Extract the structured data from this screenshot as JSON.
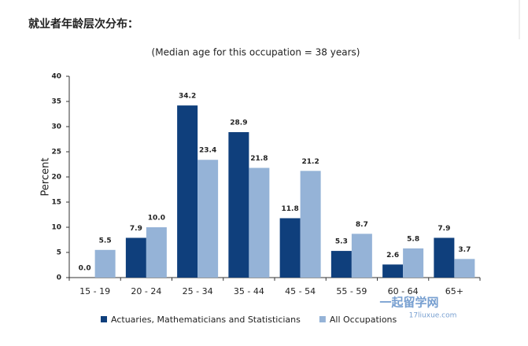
{
  "heading": "就业者年龄层次分布：",
  "watermark": {
    "name": "一起留学网",
    "url": "17liuxue.com"
  },
  "chart_data": {
    "type": "bar",
    "subtitle": "(Median age for this occupation = 38 years)",
    "y_label": "Percent",
    "categories": [
      "15 - 19",
      "20 - 24",
      "25 - 34",
      "35 - 44",
      "45 - 54",
      "55 - 59",
      "60 - 64",
      "65+"
    ],
    "series": [
      {
        "name": "Actuaries, Mathematicians and Statisticians",
        "color": "#0f3f7c",
        "values": [
          0,
          7.9,
          34.2,
          28.9,
          11.8,
          5.3,
          2.6,
          7.9
        ],
        "value_labels": [
          "0.0",
          "7.9",
          "34.2",
          "28.9",
          "11.8",
          "5.3",
          "2.6",
          "7.9"
        ]
      },
      {
        "name": "All Occupations",
        "color": "#95b3d7",
        "values": [
          5.5,
          10,
          23.4,
          21.8,
          21.2,
          8.7,
          5.8,
          3.7
        ],
        "value_labels": [
          "5.5",
          "10.0",
          "23.4",
          "21.8",
          "21.2",
          "8.7",
          "5.8",
          "3.7"
        ]
      }
    ],
    "ylim": [
      0,
      40
    ],
    "yticks": [
      0,
      5,
      10,
      15,
      20,
      25,
      30,
      35,
      40
    ],
    "grid": false,
    "legend": "bottom"
  }
}
